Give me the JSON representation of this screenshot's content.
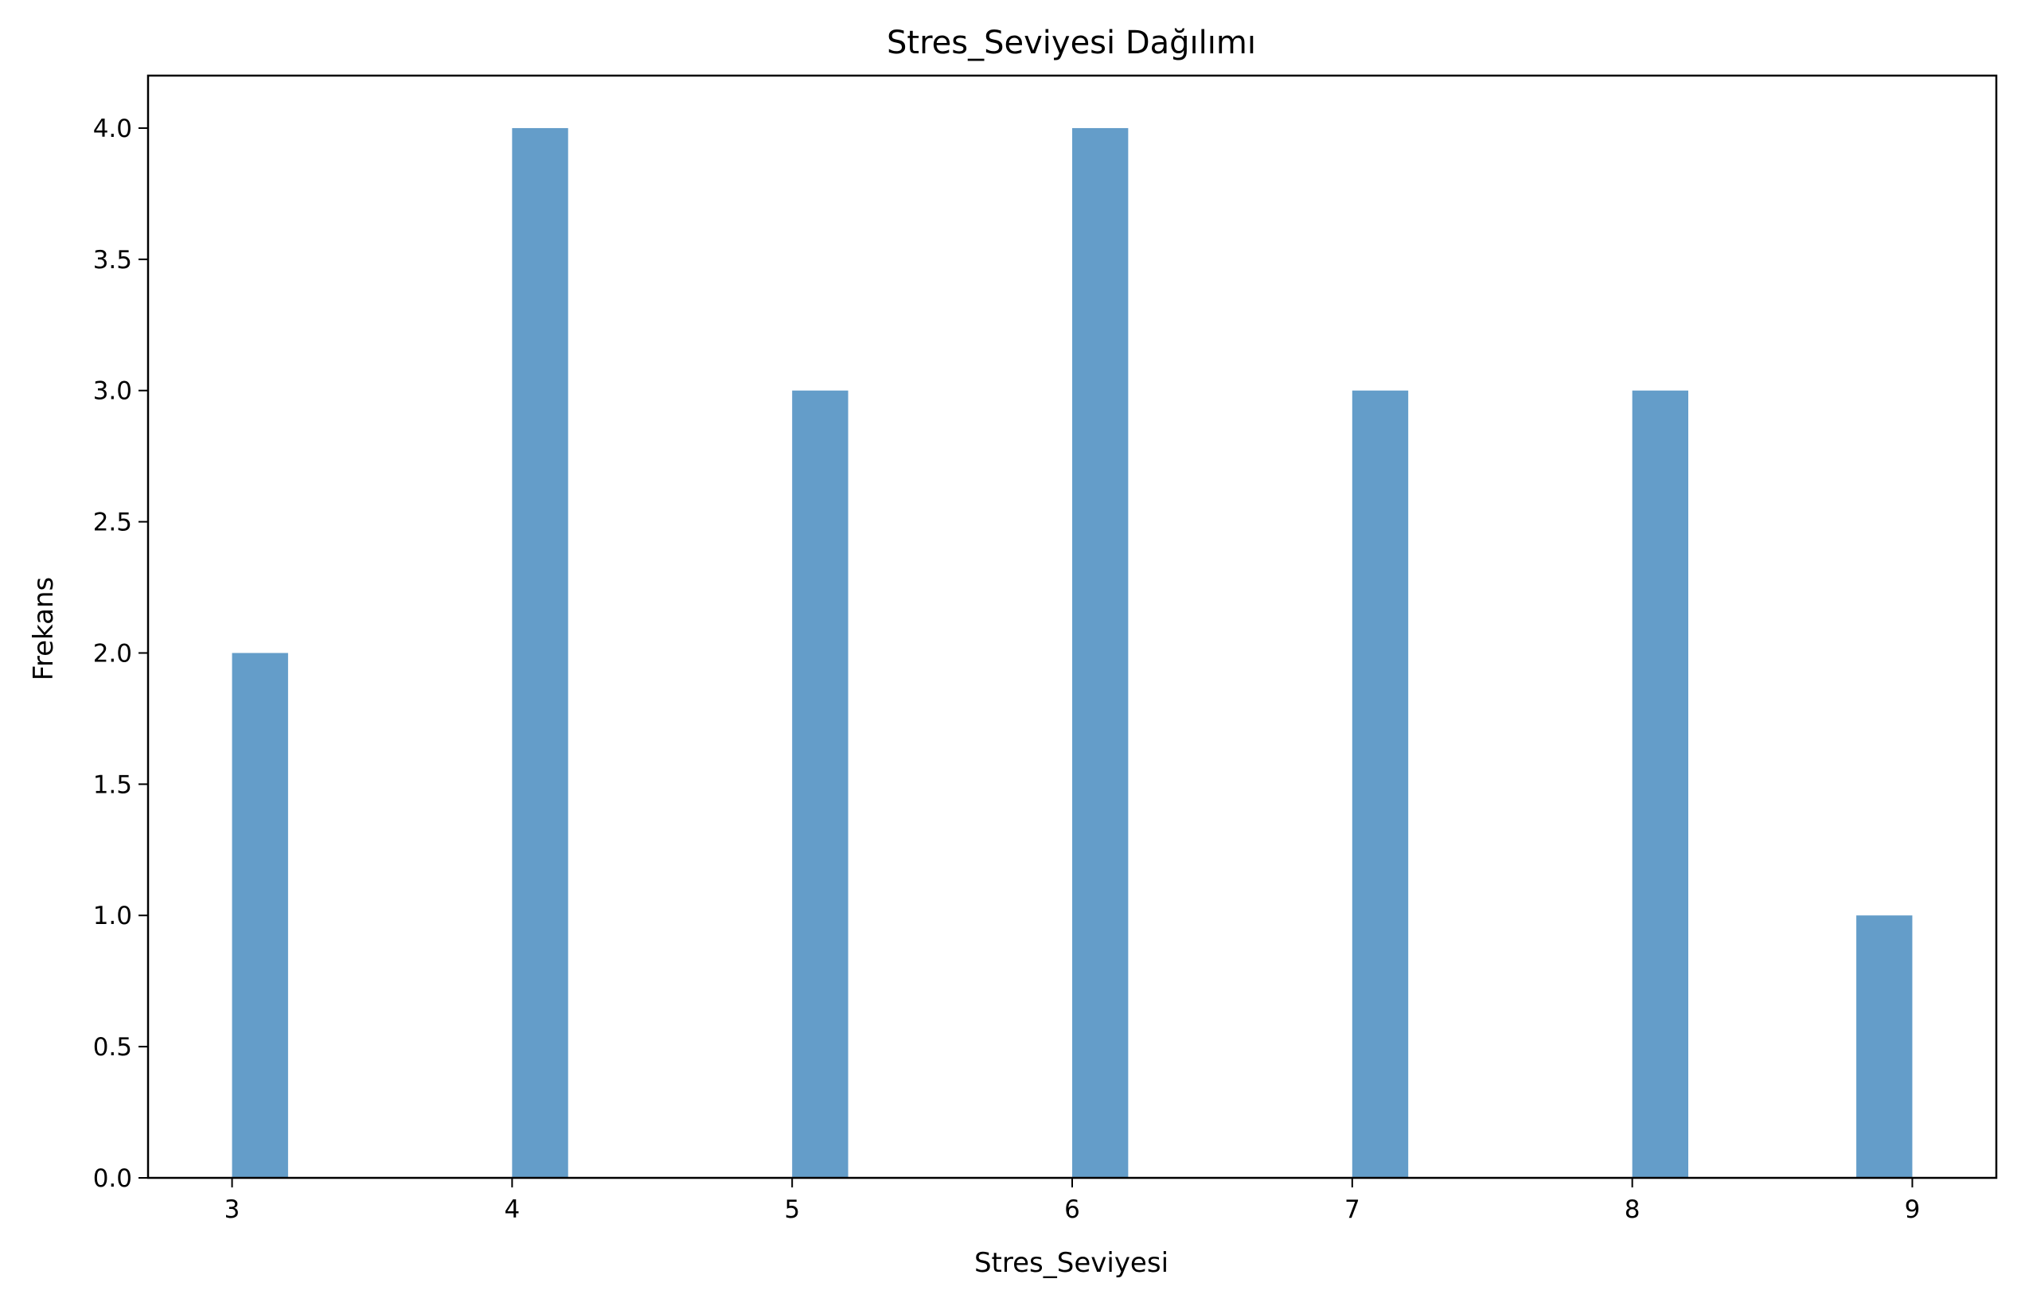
{
  "chart_data": {
    "type": "bar",
    "title": "Stres_Seviyesi Dağılımı",
    "xlabel": "Stres_Seviyesi",
    "ylabel": "Frekans",
    "bins": [
      {
        "x_start": 3.0,
        "x_end": 3.2,
        "count": 2
      },
      {
        "x_start": 4.0,
        "x_end": 4.2,
        "count": 4
      },
      {
        "x_start": 5.0,
        "x_end": 5.2,
        "count": 3
      },
      {
        "x_start": 6.0,
        "x_end": 6.2,
        "count": 4
      },
      {
        "x_start": 7.0,
        "x_end": 7.2,
        "count": 3
      },
      {
        "x_start": 8.0,
        "x_end": 8.2,
        "count": 3
      },
      {
        "x_start": 8.8,
        "x_end": 9.0,
        "count": 1
      }
    ],
    "xlim": [
      2.7,
      9.3
    ],
    "ylim": [
      0,
      4.2
    ],
    "xticks": [
      3,
      4,
      5,
      6,
      7,
      8,
      9
    ],
    "yticks": [
      0.0,
      0.5,
      1.0,
      1.5,
      2.0,
      2.5,
      3.0,
      3.5,
      4.0
    ],
    "grid": false,
    "bar_color": "#4f8fc2"
  }
}
